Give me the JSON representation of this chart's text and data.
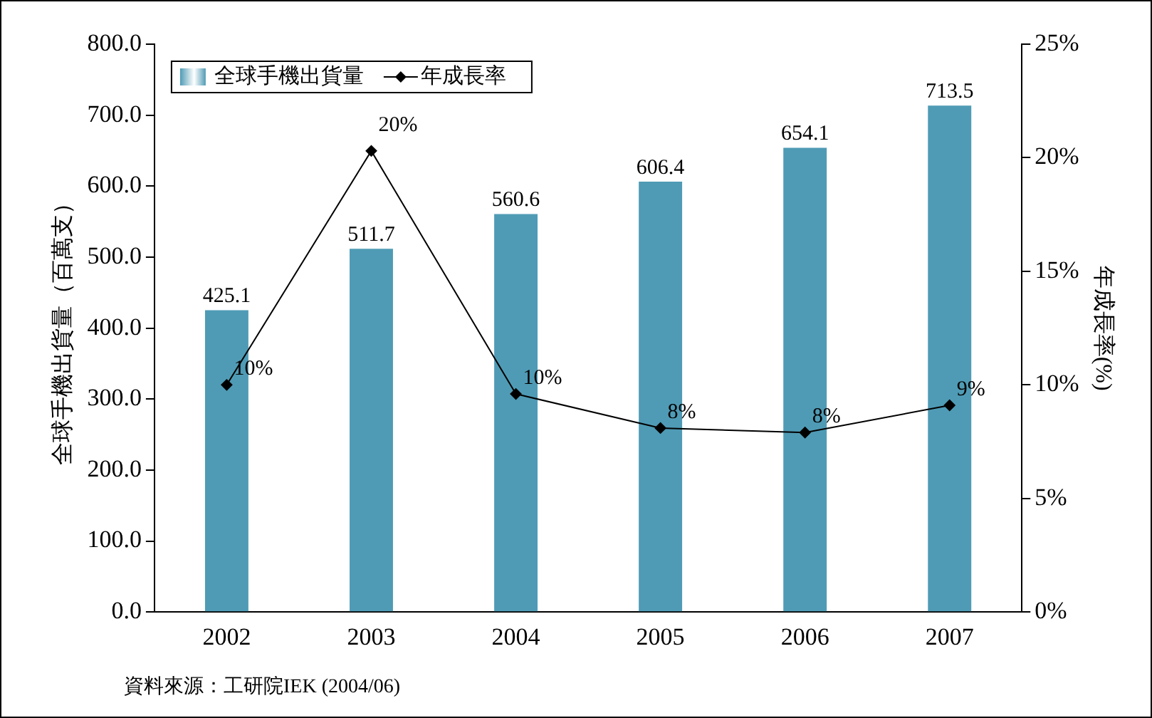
{
  "chart_data": {
    "type": "bar",
    "categories": [
      "2002",
      "2003",
      "2004",
      "2005",
      "2006",
      "2007"
    ],
    "series": [
      {
        "name": "全球手機出貨量",
        "color": "#4f9bb5",
        "values": [
          425.1,
          511.7,
          560.6,
          606.4,
          654.1,
          713.5
        ],
        "value_labels": [
          "425.1",
          "511.7",
          "560.6",
          "606.4",
          "654.1",
          "713.5"
        ]
      },
      {
        "name": "年成長率",
        "type": "line",
        "axis": "y2",
        "color": "#000000",
        "values": [
          10,
          20.3,
          9.6,
          8.1,
          7.9,
          9.1
        ],
        "value_labels": [
          "10%",
          "20%",
          "10%",
          "8%",
          "8%",
          "9%"
        ]
      }
    ],
    "ylabel": "全球手機出貨量（百萬支）",
    "y2label": "年成長率(%)",
    "ylim": [
      0,
      800
    ],
    "yticks": [
      {
        "value": 0,
        "label": "0.0"
      },
      {
        "value": 100,
        "label": "100.0"
      },
      {
        "value": 200,
        "label": "200.0"
      },
      {
        "value": 300,
        "label": "300.0"
      },
      {
        "value": 400,
        "label": "400.0"
      },
      {
        "value": 500,
        "label": "500.0"
      },
      {
        "value": 600,
        "label": "600.0"
      },
      {
        "value": 700,
        "label": "700.0"
      },
      {
        "value": 800,
        "label": "800.0"
      }
    ],
    "y2lim": [
      0,
      25
    ],
    "y2ticks": [
      {
        "value": 0,
        "label": "0%"
      },
      {
        "value": 5,
        "label": "5%"
      },
      {
        "value": 10,
        "label": "10%"
      },
      {
        "value": 15,
        "label": "15%"
      },
      {
        "value": 20,
        "label": "20%"
      },
      {
        "value": 25,
        "label": "25%"
      }
    ],
    "grid": false,
    "legend": "top left",
    "marker": "diamond",
    "line_style": "solid",
    "annotations": [
      "資料來源：工研院IEK (2004/06)"
    ]
  }
}
